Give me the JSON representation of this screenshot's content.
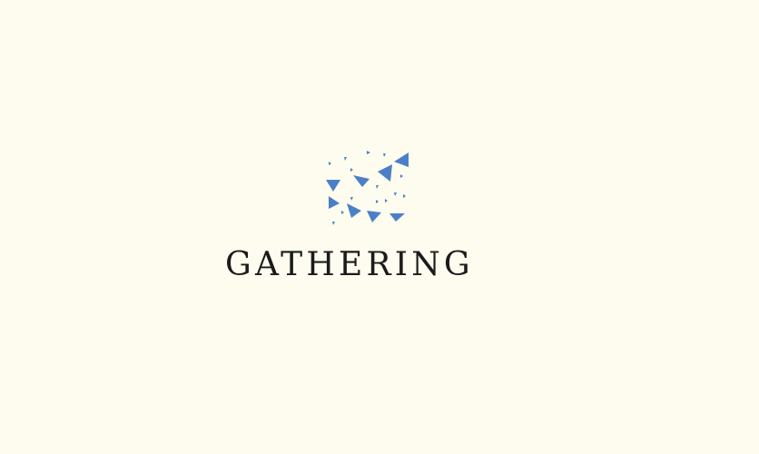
{
  "brand": {
    "name": "GATHERING",
    "logo_icon": "scattered-triangles-icon",
    "accent_color": "#4c7fc7",
    "text_color": "#1b1b1b",
    "background_color": "#fdfcee"
  }
}
